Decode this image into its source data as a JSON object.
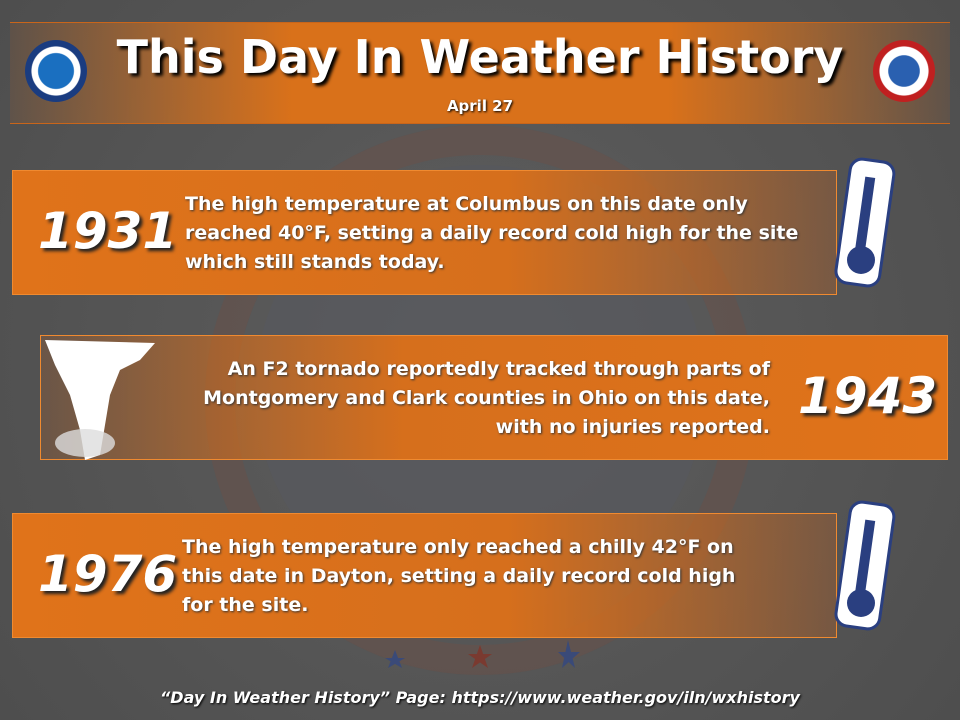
{
  "header": {
    "title": "This Day In Weather History",
    "date": "April 27"
  },
  "events": [
    {
      "year": "1931",
      "lines": [
        "The high temperature at Columbus on this date only",
        "reached 40°F, setting a daily record cold high for the site",
        "which still stands today."
      ]
    },
    {
      "year": "1943",
      "lines": [
        "An F2 tornado reportedly tracked through parts of",
        "Montgomery and Clark counties in Ohio on this date,",
        "with no injuries reported."
      ]
    },
    {
      "year": "1976",
      "lines": [
        "The high temperature only reached a chilly 42°F on",
        "this date in Dayton, setting a daily record cold high",
        "for the site."
      ]
    }
  ],
  "footer": "“Day In Weather History” Page: https://www.weather.gov/iln/wxhistory"
}
